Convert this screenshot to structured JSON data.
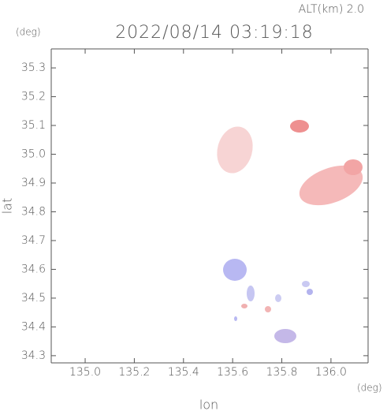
{
  "chart_data": {
    "type": "map",
    "title": "2022/08/14 03:19:18",
    "subtitle": "ALT(km) 2.0",
    "xlabel": "lon",
    "ylabel": "lat",
    "x_unit": "(deg)",
    "y_unit": "(deg)",
    "xlim": [
      134.862,
      136.151
    ],
    "ylim": [
      34.275,
      35.366
    ],
    "xticks": [
      {
        "value": 135.0,
        "label": "135.0"
      },
      135.2,
      135.4,
      135.6,
      135.8,
      {
        "value": 136.0,
        "label": "136.0"
      }
    ],
    "yticks": [
      34.3,
      34.4,
      34.5,
      34.6,
      34.7,
      34.8,
      34.9,
      {
        "value": 35.0,
        "label": "35.0"
      },
      35.1,
      35.2,
      35.3
    ]
  }
}
